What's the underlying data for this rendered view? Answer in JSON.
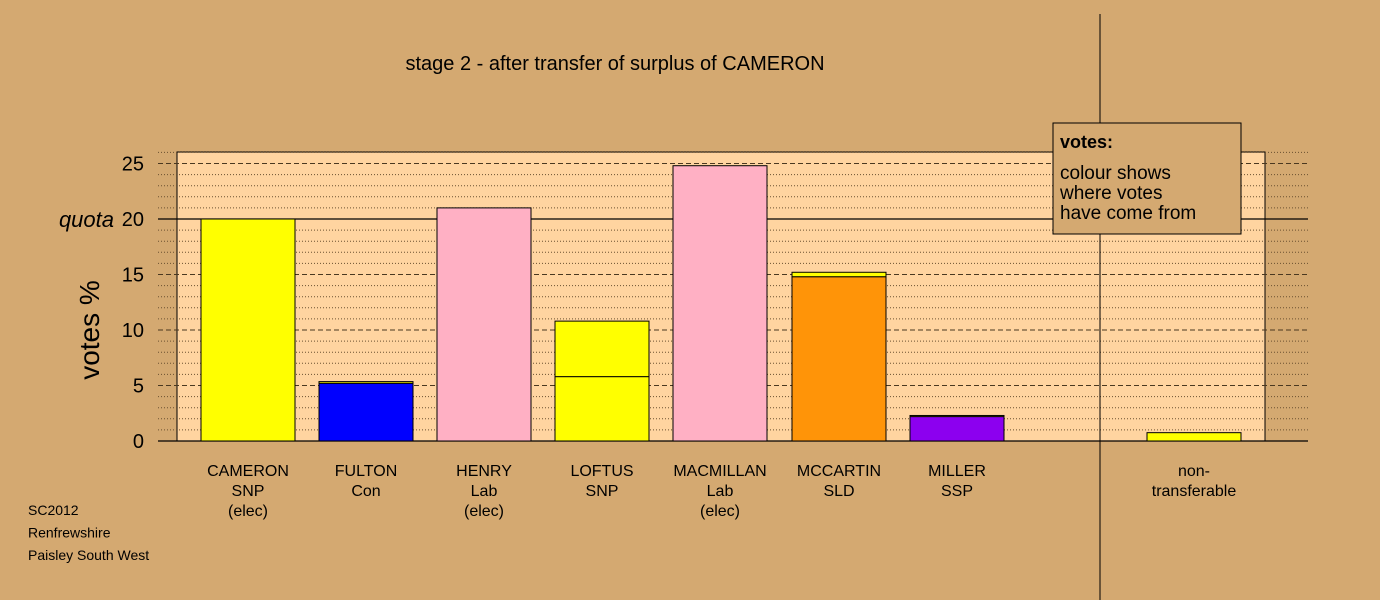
{
  "chart_data": {
    "type": "bar",
    "stacked": true,
    "title": "stage 2 - after transfer of surplus of CAMERON",
    "ylabel": "votes %",
    "ylim": [
      0,
      26
    ],
    "yticks": [
      0,
      5,
      10,
      15,
      20,
      25
    ],
    "quota": {
      "label": "quota",
      "value": 20
    },
    "categories": [
      {
        "lines": [
          "CAMERON",
          "SNP",
          "(elec)"
        ],
        "segments": [
          {
            "value": 20.0,
            "color": "#ffff00"
          }
        ]
      },
      {
        "lines": [
          "FULTON",
          "Con"
        ],
        "segments": [
          {
            "value": 5.2,
            "color": "#0000ff"
          },
          {
            "value": 0.15,
            "color": "#ffff00"
          }
        ]
      },
      {
        "lines": [
          "HENRY",
          "Lab",
          "(elec)"
        ],
        "segments": [
          {
            "value": 21.0,
            "color": "#ffb0c4"
          }
        ]
      },
      {
        "lines": [
          "LOFTUS",
          "SNP"
        ],
        "segments": [
          {
            "value": 5.8,
            "color": "#ffff00"
          },
          {
            "value": 5.0,
            "color": "#ffff00"
          }
        ]
      },
      {
        "lines": [
          "MACMILLAN",
          "Lab",
          "(elec)"
        ],
        "segments": [
          {
            "value": 24.8,
            "color": "#ffb0c4"
          }
        ]
      },
      {
        "lines": [
          "MCCARTIN",
          "SLD"
        ],
        "segments": [
          {
            "value": 14.8,
            "color": "#ff9408"
          },
          {
            "value": 0.4,
            "color": "#ffff00"
          }
        ]
      },
      {
        "lines": [
          "MILLER",
          "SSP"
        ],
        "segments": [
          {
            "value": 2.2,
            "color": "#8c00ef"
          },
          {
            "value": 0.1,
            "color": "#ffff00"
          }
        ]
      }
    ],
    "nontransferable": {
      "lines": [
        "non-",
        "transferable"
      ],
      "value": 0.75,
      "color": "#ffff00"
    },
    "legend": {
      "title": "votes:",
      "lines": [
        "colour shows",
        "where votes",
        "have come from"
      ],
      "placement": "top-right"
    },
    "colors": {
      "background": "#d4a971",
      "plot_background": "#ffd4a0"
    }
  },
  "footer": [
    "SC2012",
    "Renfrewshire",
    "Paisley South West"
  ]
}
